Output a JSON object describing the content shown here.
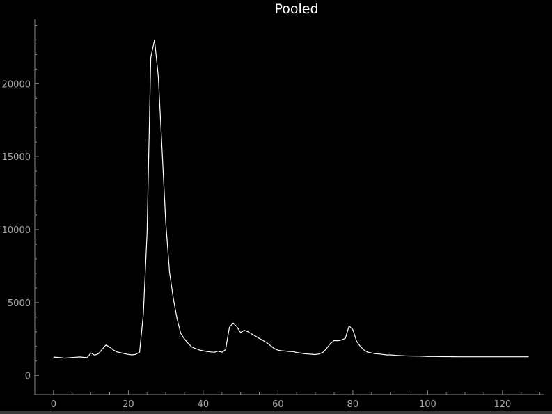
{
  "chart_data": {
    "type": "line",
    "title": "Pooled",
    "xlabel": "",
    "ylabel": "",
    "xlim": [
      -5,
      131
    ],
    "ylim": [
      -1300,
      24400
    ],
    "xticks": [
      0,
      20,
      40,
      60,
      80,
      100,
      120
    ],
    "yticks": [
      0,
      5000,
      10000,
      15000,
      20000
    ],
    "xtick_labels": [
      "0",
      "20",
      "40",
      "60",
      "80",
      "100",
      "120"
    ],
    "ytick_labels": [
      "0",
      "5000",
      "10000",
      "15000",
      "20000"
    ],
    "grid": false,
    "colors": {
      "background": "#000000",
      "line": "#ffffff",
      "axis": "#8a8a8a",
      "tick_label": "#a8a8a8",
      "title": "#ffffff"
    },
    "series": [
      {
        "x": [
          0,
          1,
          2,
          3,
          4,
          5,
          6,
          7,
          8,
          9,
          10,
          11,
          12,
          13,
          14,
          15,
          16,
          17,
          18,
          19,
          20,
          21,
          22,
          23,
          24,
          25,
          26,
          27,
          28,
          29,
          30,
          31,
          32,
          33,
          34,
          35,
          36,
          37,
          38,
          39,
          40,
          41,
          42,
          43,
          44,
          45,
          46,
          47,
          48,
          49,
          50,
          51,
          52,
          53,
          54,
          55,
          56,
          57,
          58,
          59,
          60,
          61,
          62,
          63,
          64,
          65,
          66,
          67,
          68,
          69,
          70,
          71,
          72,
          73,
          74,
          75,
          76,
          77,
          78,
          79,
          80,
          81,
          82,
          83,
          84,
          85,
          86,
          87,
          88,
          89,
          90,
          92,
          94,
          96,
          98,
          100,
          102,
          104,
          106,
          108,
          110,
          112,
          114,
          116,
          118,
          120,
          122,
          124,
          126,
          127
        ],
        "y": [
          1270,
          1250,
          1230,
          1200,
          1220,
          1240,
          1260,
          1280,
          1250,
          1230,
          1550,
          1400,
          1500,
          1800,
          2100,
          1950,
          1750,
          1620,
          1560,
          1500,
          1450,
          1420,
          1460,
          1600,
          4200,
          9800,
          21800,
          23000,
          20500,
          15500,
          10500,
          7100,
          5300,
          3900,
          2900,
          2500,
          2200,
          1950,
          1850,
          1750,
          1700,
          1650,
          1620,
          1600,
          1680,
          1600,
          1780,
          3300,
          3600,
          3350,
          2950,
          3100,
          3000,
          2850,
          2700,
          2550,
          2400,
          2250,
          2050,
          1850,
          1740,
          1700,
          1680,
          1650,
          1640,
          1580,
          1540,
          1500,
          1480,
          1460,
          1440,
          1480,
          1600,
          1850,
          2200,
          2400,
          2380,
          2450,
          2550,
          3400,
          3150,
          2350,
          2000,
          1750,
          1600,
          1550,
          1500,
          1480,
          1450,
          1420,
          1420,
          1380,
          1350,
          1340,
          1330,
          1310,
          1310,
          1300,
          1300,
          1290,
          1290,
          1290,
          1290,
          1290,
          1290,
          1290,
          1290,
          1290,
          1290,
          1290
        ]
      }
    ]
  }
}
